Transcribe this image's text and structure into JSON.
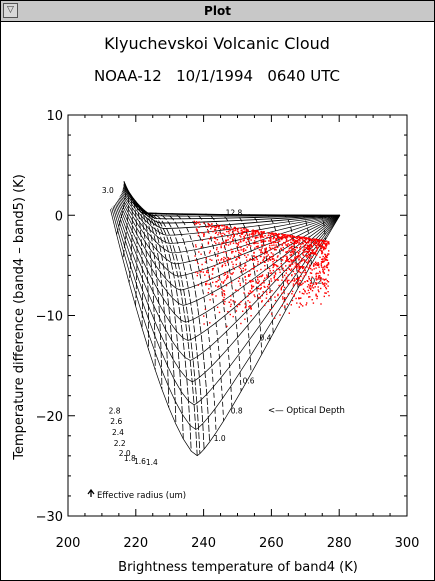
{
  "window": {
    "title": "Plot",
    "menu_glyph": "▽"
  },
  "chart_data": {
    "type": "scatter",
    "title_line1": "Klyuchevskoi Volcanic Cloud",
    "title_line2": "NOAA-12   10/1/1994   0640 UTC",
    "xlabel": "Brightness temperature of band4  (K)",
    "ylabel": "Temperature difference (band4 – band5)  (K)",
    "xlim": [
      200,
      300
    ],
    "ylim": [
      -30,
      10
    ],
    "xticks": [
      200,
      220,
      240,
      260,
      280,
      300
    ],
    "yticks": [
      -30,
      -20,
      -10,
      0,
      10
    ],
    "xtick_labels": [
      "200",
      "220",
      "240",
      "260",
      "280",
      "300"
    ],
    "ytick_labels": [
      "−30",
      "−20",
      "−10",
      "0",
      "10"
    ],
    "grid": false,
    "annotations": {
      "optical_depth": "<—  Optical Depth",
      "effective_radius": "Effective radius (um)"
    },
    "radius_labels": [
      {
        "text": "3.0",
        "x": 213.5,
        "y": 2.2
      },
      {
        "text": "2.8",
        "x": 215.5,
        "y": -19.8
      },
      {
        "text": "2.6",
        "x": 216.0,
        "y": -20.8
      },
      {
        "text": "2.4",
        "x": 216.5,
        "y": -21.9
      },
      {
        "text": "2.2",
        "x": 217.0,
        "y": -23.0
      },
      {
        "text": "2.0",
        "x": 218.5,
        "y": -24.0
      },
      {
        "text": "1.8",
        "x": 220.0,
        "y": -24.5
      },
      {
        "text": "1.6",
        "x": 223.0,
        "y": -24.8
      },
      {
        "text": "1.4",
        "x": 226.5,
        "y": -24.9
      }
    ],
    "optical_depth_labels": [
      {
        "text": "12.8",
        "x": 246.5,
        "y": 0.0
      },
      {
        "text": "0.2",
        "x": 271.5,
        "y": -6.8
      },
      {
        "text": "0.4",
        "x": 256.5,
        "y": -12.5
      },
      {
        "text": "0.6",
        "x": 251.5,
        "y": -16.8
      },
      {
        "text": "0.8",
        "x": 248.0,
        "y": -19.8
      },
      {
        "text": "1.0",
        "x": 243.0,
        "y": -22.5
      }
    ],
    "series_color": "#ff0000",
    "scatter_region": {
      "x_min": 237,
      "x_max": 277,
      "y_min": -12.5,
      "y_max": -0.5
    }
  }
}
